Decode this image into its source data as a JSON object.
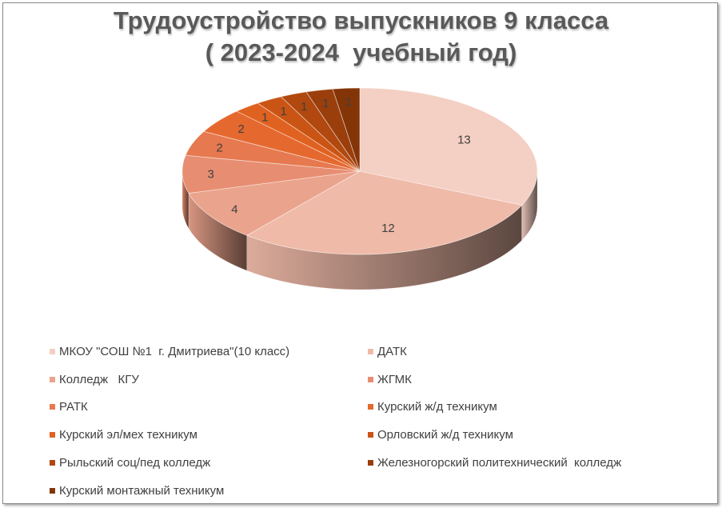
{
  "chart_data": {
    "type": "pie",
    "title_lines": [
      "Трудоустройство выпускников 9 класса",
      "( 2023-2024  учебный год)"
    ],
    "categories": [
      "МКОУ \"СОШ №1  г. Дмитриева\"(10 класс)",
      "ДАТК",
      "Колледж   КГУ",
      "ЖГМК",
      "РАТК",
      "Курский ж/д техникум",
      "Курский эл/мех техникум",
      "Орловский ж/д техникум",
      "Рыльский соц/пед колледж",
      "Железногорский политехнический  колледж",
      "Курский монтажный техникум"
    ],
    "values": [
      13,
      12,
      4,
      3,
      2,
      2,
      1,
      1,
      1,
      1,
      1
    ],
    "data_labels": [
      "13",
      "12",
      "4",
      "3",
      "2",
      "2",
      "1",
      "1",
      "1",
      "1",
      "1"
    ],
    "colors": [
      "#f4cfc3",
      "#efbaa8",
      "#eaa38c",
      "#e78e72",
      "#e6794f",
      "#e5692f",
      "#e06220",
      "#ca5414",
      "#b0480f",
      "#9a3e0c",
      "#843508"
    ],
    "legend_position": "bottom",
    "three_d": true
  }
}
